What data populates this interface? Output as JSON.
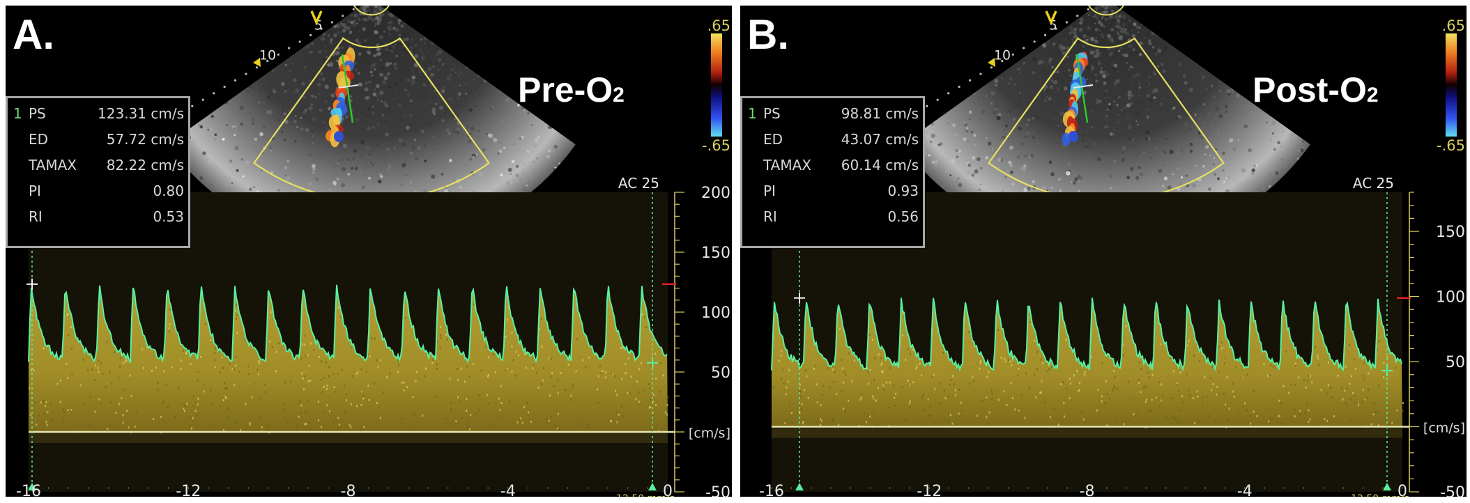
{
  "panels": [
    {
      "letter": "A.",
      "condition": "Pre-O",
      "condition_sub": "2",
      "sector": {
        "depth_marks": [
          "5",
          "10"
        ],
        "color_scale_top": ".65",
        "color_scale_bottom": "-.65"
      },
      "measurements": [
        {
          "index": "1",
          "label": "PS",
          "value": "123.31 cm/s"
        },
        {
          "index": "",
          "label": "ED",
          "value": "57.72 cm/s"
        },
        {
          "index": "",
          "label": "TAMAX",
          "value": "82.22 cm/s"
        },
        {
          "index": "",
          "label": "PI",
          "value": "0.80"
        },
        {
          "index": "",
          "label": "RI",
          "value": "0.53"
        }
      ],
      "doppler": {
        "ac_label": "AC 25",
        "unit": "[cm/s]",
        "sweep_speed": "12.50 mm/s",
        "velocity_ticks": [
          200,
          150,
          100,
          50,
          -50
        ],
        "velocity_range": [
          -50,
          200
        ],
        "time_ticks": [
          "-16",
          "-12",
          "-8",
          "-4",
          "0"
        ],
        "time_range": [
          -16,
          0
        ],
        "peak_velocity": 123.31,
        "end_diastolic_velocity": 57.72,
        "beats": 19
      }
    },
    {
      "letter": "B.",
      "condition": "Post-O",
      "condition_sub": "2",
      "sector": {
        "depth_marks": [
          "5",
          "10"
        ],
        "color_scale_top": ".65",
        "color_scale_bottom": "-.65"
      },
      "measurements": [
        {
          "index": "1",
          "label": "PS",
          "value": "98.81 cm/s"
        },
        {
          "index": "",
          "label": "ED",
          "value": "43.07 cm/s"
        },
        {
          "index": "",
          "label": "TAMAX",
          "value": "60.14 cm/s"
        },
        {
          "index": "",
          "label": "PI",
          "value": "0.93"
        },
        {
          "index": "",
          "label": "RI",
          "value": "0.56"
        }
      ],
      "doppler": {
        "ac_label": "AC 25",
        "unit": "[cm/s]",
        "sweep_speed": "12.50 mm/s",
        "velocity_ticks": [
          150,
          100,
          50,
          -50
        ],
        "velocity_range": [
          -50,
          180
        ],
        "time_ticks": [
          "-16",
          "-12",
          "-8",
          "-4",
          "0"
        ],
        "time_range": [
          -16,
          0
        ],
        "peak_velocity": 98.81,
        "end_diastolic_velocity": 43.07,
        "beats": 20
      }
    }
  ],
  "colors": {
    "spectral": "#c8b030",
    "envelope": "#58f0a0",
    "scale_yellow": "#d8d060",
    "sector_outline": "#e8e060",
    "baseline": "#e8e8b0",
    "velocity_marker": "#e02020"
  }
}
